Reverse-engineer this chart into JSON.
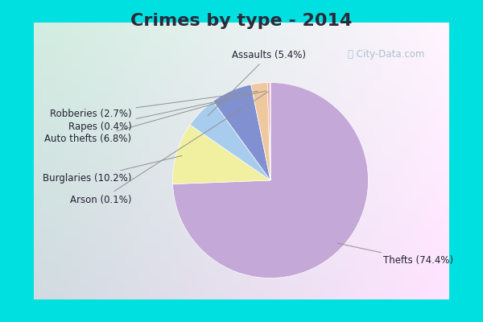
{
  "title": "Crimes by type - 2014",
  "slices": [
    {
      "label": "Thefts",
      "pct": 74.4,
      "color": "#c4a8d8"
    },
    {
      "label": "Burglaries",
      "pct": 10.2,
      "color": "#f0f0a0"
    },
    {
      "label": "Assaults",
      "pct": 5.4,
      "color": "#a8ccee"
    },
    {
      "label": "Auto thefts",
      "pct": 6.8,
      "color": "#8090d0"
    },
    {
      "label": "Robberies",
      "pct": 2.7,
      "color": "#f0c8a0"
    },
    {
      "label": "Rapes",
      "pct": 0.4,
      "color": "#f0a8a8"
    },
    {
      "label": "Arson",
      "pct": 0.1,
      "color": "#c8e0c0"
    }
  ],
  "border_color": "#00e0e0",
  "bg_color_tl": "#d4ece0",
  "bg_color_br": "#e8e4f4",
  "title_color": "#2a2a3a",
  "title_fontsize": 16,
  "label_fontsize": 8.5,
  "watermark": "City-Data.com",
  "figsize": [
    6.0,
    4.0
  ],
  "dpi": 100,
  "border_thickness": 0.07
}
